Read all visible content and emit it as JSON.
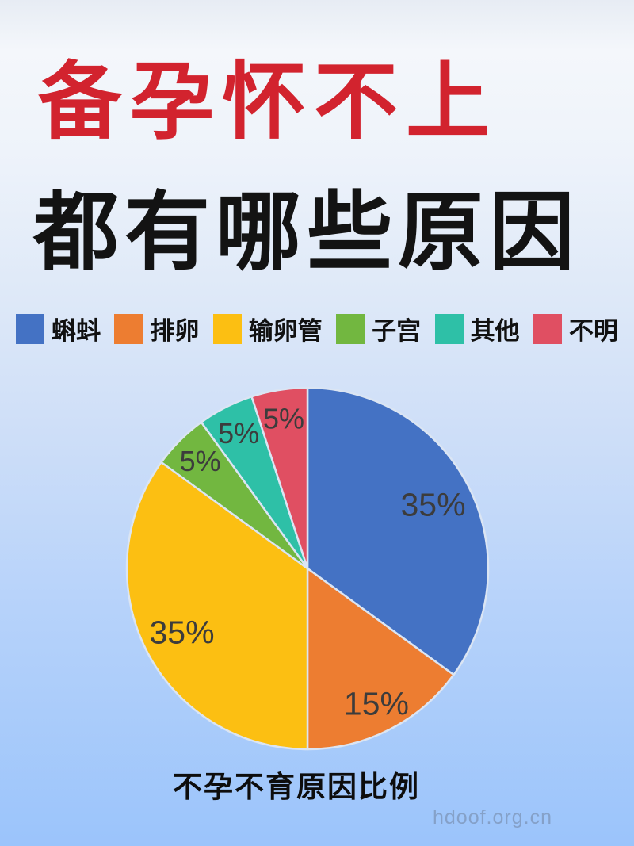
{
  "page": {
    "title_line1": "备孕怀不上",
    "title_line2": "都有哪些原因",
    "watermark": "hdoof.org.cn"
  },
  "colors": {
    "title_red": "#d2232e",
    "title_black": "#131313",
    "slice_label": "#3c3c3c",
    "background_top": "#f4f7fb",
    "background_bottom": "#9bc4fb"
  },
  "chart_data": {
    "type": "pie",
    "title": "不孕不育原因比例",
    "legend_position": "top",
    "start_angle_deg": 0,
    "direction": "clockwise",
    "unit": "%",
    "series": [
      {
        "name": "蝌蚪",
        "value": 35,
        "label": "35%",
        "color": "#4472c4"
      },
      {
        "name": "排卵",
        "value": 15,
        "label": "15%",
        "color": "#ed7d31"
      },
      {
        "name": "输卵管",
        "value": 35,
        "label": "35%",
        "color": "#fcbf12"
      },
      {
        "name": "子宫",
        "value": 5,
        "label": "5%",
        "color": "#72b740"
      },
      {
        "name": "其他",
        "value": 5,
        "label": "5%",
        "color": "#2ec0a7"
      },
      {
        "name": "不明",
        "value": 5,
        "label": "5%",
        "color": "#e04f62"
      }
    ]
  }
}
